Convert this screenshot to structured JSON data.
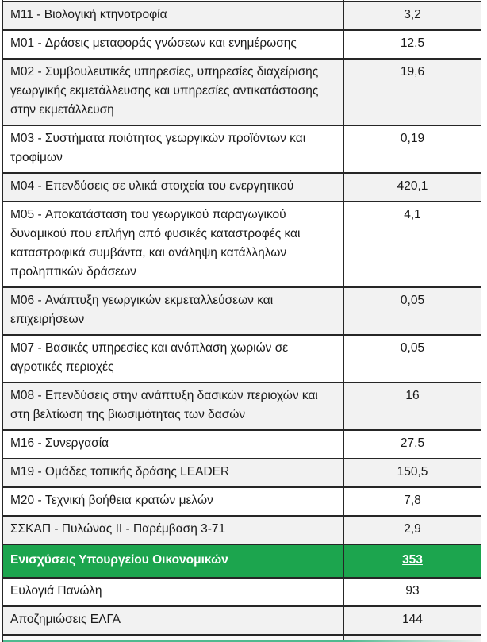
{
  "table": {
    "rows": [
      {
        "label": "M11 - Βιολογική κτηνοτροφία",
        "value": "3,2",
        "variant": "gray"
      },
      {
        "label": "M01 - Δράσεις μεταφοράς γνώσεων και ενημέρωσης",
        "value": "12,5",
        "variant": "white"
      },
      {
        "label": "M02 - Συμβουλευτικές υπηρεσίες, υπηρεσίες διαχείρισης γεωργικής εκμετάλλευσης και υπηρεσίες αντικατάστασης στην εκμετάλλευση",
        "value": "19,6",
        "variant": "gray"
      },
      {
        "label": "M03 - Συστήματα ποιότητας γεωργικών προϊόντων και τροφίμων",
        "value": "0,19",
        "variant": "white"
      },
      {
        "label": "M04 - Επενδύσεις σε υλικά στοιχεία του ενεργητικού",
        "value": "420,1",
        "variant": "gray"
      },
      {
        "label": "M05 - Αποκατάσταση του γεωργικού παραγωγικού δυναμικού που επλήγη από φυσικές καταστροφές και καταστροφικά συμβάντα, και ανάληψη κατάλληλων προληπτικών δράσεων",
        "value": "4,1",
        "variant": "white"
      },
      {
        "label": "M06 - Ανάπτυξη γεωργικών εκμεταλλεύσεων και επιχειρήσεων",
        "value": "0,05",
        "variant": "gray"
      },
      {
        "label": "M07 - Βασικές υπηρεσίες και ανάπλαση χωριών σε αγροτικές περιοχές",
        "value": "0,05",
        "variant": "white"
      },
      {
        "label": "M08 - Επενδύσεις στην ανάπτυξη δασικών περιοχών και στη βελτίωση της βιωσιμότητας των δασών",
        "value": "16",
        "variant": "gray"
      },
      {
        "label": "M16 - Συνεργασία",
        "value": "27,5",
        "variant": "white"
      },
      {
        "label": "M19 - Ομάδες τοπικής δράσης LEADER",
        "value": "150,5",
        "variant": "gray"
      },
      {
        "label": "M20 - Τεχνική βοήθεια κρατών μελών",
        "value": "7,8",
        "variant": "white"
      },
      {
        "label": "ΣΣΚΑΠ - Πυλώνας ΙΙ - Παρέμβαση 3-71",
        "value": "2,9",
        "variant": "gray"
      },
      {
        "label": "Ενισχύσεις Υπουργείου Οικονομικών",
        "value": "353",
        "variant": "green"
      },
      {
        "label": "Ευλογιά Πανώλη",
        "value": "93",
        "variant": "white"
      },
      {
        "label": "Αποζημιώσεις ΕΛΓΑ",
        "value": "144",
        "variant": "gray"
      }
    ]
  },
  "colors": {
    "row_alt_gray": "#F2F2F2",
    "highlight_green": "#1CA54E",
    "highlight_text": "#FFFFFF",
    "border": "#262626",
    "text": "#1A1A1A",
    "bottom_strip_green": "#4FB98F"
  }
}
